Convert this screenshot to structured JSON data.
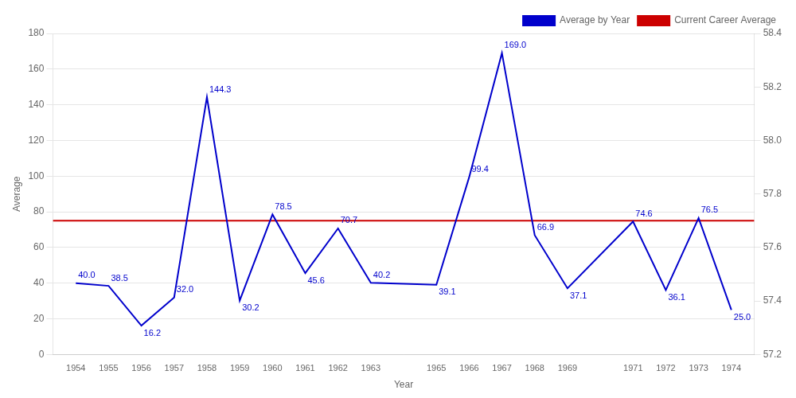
{
  "chart_data": {
    "type": "line",
    "xlabel": "Year",
    "ylabel": "Average",
    "x": [
      1954,
      1955,
      1956,
      1957,
      1958,
      1959,
      1960,
      1961,
      1962,
      1963,
      1965,
      1966,
      1967,
      1968,
      1969,
      1971,
      1972,
      1973,
      1974
    ],
    "series": [
      {
        "name": "Average by Year",
        "color": "#0000cc",
        "values": [
          40.0,
          38.5,
          16.2,
          32.0,
          144.3,
          30.2,
          78.5,
          45.6,
          70.7,
          40.2,
          39.1,
          99.4,
          169.0,
          66.9,
          37.1,
          74.6,
          36.1,
          76.5,
          25.0
        ],
        "value_labels": [
          "40.0",
          "38.5",
          "16.2",
          "32.0",
          "144.3",
          "30.2",
          "78.5",
          "45.6",
          "70.7",
          "40.2",
          "39.1",
          "99.4",
          "169.0",
          "66.9",
          "37.1",
          "74.6",
          "36.1",
          "76.5",
          "25.0"
        ]
      },
      {
        "name": "Current Career Average",
        "color": "#cc0000",
        "type": "hline",
        "y": 75.0
      }
    ],
    "xlim": [
      1953.3,
      1974.7
    ],
    "xticks": [
      1954,
      1955,
      1956,
      1957,
      1958,
      1959,
      1960,
      1961,
      1962,
      1963,
      1965,
      1966,
      1967,
      1968,
      1969,
      1971,
      1972,
      1973,
      1974
    ],
    "ylim": [
      0,
      180
    ],
    "yticks": [
      0,
      20,
      40,
      60,
      80,
      100,
      120,
      140,
      160,
      180
    ],
    "y2lim": [
      57.2,
      58.4
    ],
    "y2ticks": [
      57.2,
      57.4,
      57.6,
      57.8,
      {
        "value": 58.0,
        "label": "58.0"
      },
      58.2,
      58.4
    ],
    "grid": "y",
    "legend": "upper right",
    "data_labels": true
  }
}
